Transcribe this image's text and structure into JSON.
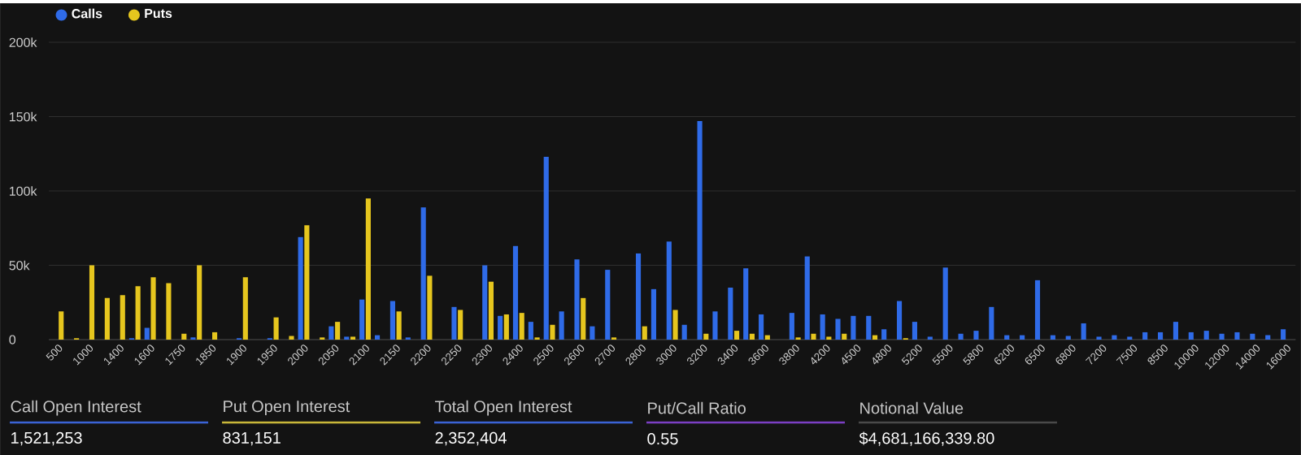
{
  "chart_data": {
    "type": "bar",
    "categories": [
      "500",
      null,
      "1000",
      null,
      "1400",
      null,
      "1600",
      null,
      "1750",
      null,
      "1850",
      null,
      "1900",
      null,
      "1950",
      null,
      "2000",
      null,
      "2050",
      null,
      "2100",
      null,
      "2150",
      null,
      "2200",
      null,
      "2250",
      null,
      "2300",
      null,
      "2400",
      null,
      "2500",
      null,
      "2600",
      null,
      "2700",
      null,
      "2800",
      null,
      "3000",
      null,
      "3200",
      null,
      "3400",
      null,
      "3600",
      null,
      "3800",
      null,
      "4200",
      null,
      "4500",
      null,
      "4800",
      null,
      "5200",
      null,
      "5500",
      null,
      "5800",
      null,
      "6200",
      null,
      "6500",
      null,
      "6800",
      null,
      "7200",
      null,
      "7500",
      null,
      "8500",
      null,
      "10000",
      null,
      "12000",
      null,
      "14000",
      null,
      "16000"
    ],
    "series": [
      {
        "name": "Calls",
        "color": "#2f6be8",
        "values": [
          0,
          0,
          0,
          0,
          0,
          1000,
          8000,
          0,
          0,
          1500,
          0,
          0,
          1000,
          0,
          1000,
          0,
          69000,
          0,
          9000,
          2000,
          27000,
          3000,
          26000,
          1500,
          89000,
          0,
          22000,
          0,
          50000,
          16000,
          63000,
          12000,
          123000,
          19000,
          54000,
          9000,
          47000,
          0,
          58000,
          34000,
          66000,
          10000,
          147000,
          19000,
          35000,
          48000,
          17000,
          0,
          18000,
          56000,
          17000,
          14000,
          16000,
          16000,
          7000,
          26000,
          12000,
          2000,
          48500,
          4000,
          6000,
          22000,
          3000,
          3000,
          40000,
          3000,
          2500,
          11000,
          2000,
          3000,
          2000,
          5000,
          5000,
          12000,
          5000,
          6000,
          4000,
          5000,
          4000,
          3000,
          7000
        ]
      },
      {
        "name": "Puts",
        "color": "#e6c61e",
        "values": [
          19000,
          1000,
          50000,
          28000,
          30000,
          36000,
          42000,
          38000,
          4000,
          50000,
          5000,
          0,
          42000,
          0,
          15000,
          2500,
          77000,
          1500,
          12000,
          2000,
          95000,
          0,
          19000,
          0,
          43000,
          0,
          20000,
          0,
          39000,
          17000,
          18000,
          1500,
          10000,
          0,
          28000,
          0,
          1500,
          0,
          9000,
          0,
          20000,
          0,
          4000,
          0,
          6000,
          4000,
          3000,
          0,
          1500,
          4000,
          2000,
          4000,
          0,
          3000,
          0,
          1000,
          0,
          0,
          0,
          0,
          0,
          0,
          0,
          0,
          0,
          0,
          0,
          0,
          0,
          0,
          0,
          0,
          0,
          0,
          0,
          0,
          0,
          0,
          0,
          0,
          0
        ]
      }
    ],
    "ylim": [
      0,
      200000
    ],
    "yticks": [
      {
        "value": 0,
        "label": "0"
      },
      {
        "value": 50000,
        "label": "50k"
      },
      {
        "value": 100000,
        "label": "100k"
      },
      {
        "value": 150000,
        "label": "150k"
      },
      {
        "value": 200000,
        "label": "200k"
      }
    ],
    "grid": "y",
    "legend": "top left",
    "annotations": [
      "Call Open Interest",
      "1,521,253",
      "Put Open Interest",
      "831,151",
      "Total Open Interest",
      "2,352,404",
      "Put/Call Ratio",
      "0.55",
      "Notional Value",
      "$4,681,166,339.80"
    ]
  }
}
